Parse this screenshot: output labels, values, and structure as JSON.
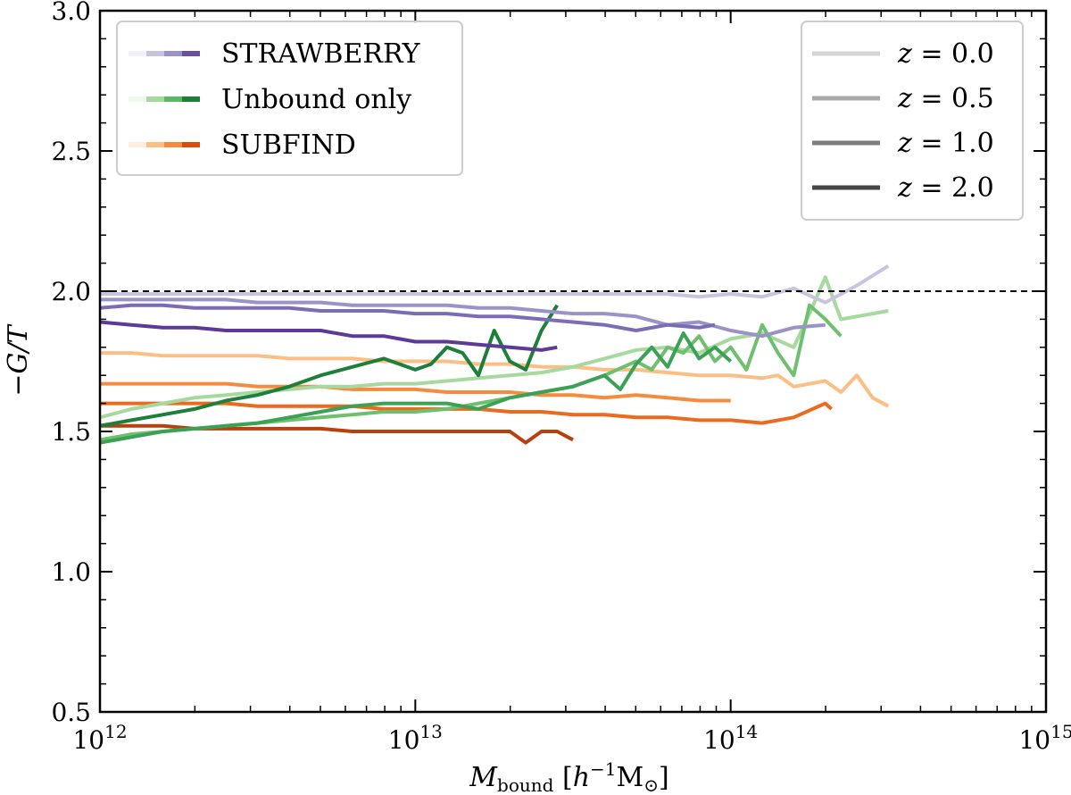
{
  "chart_data": {
    "type": "line",
    "xscale": "log",
    "xlim": [
      1000000000000.0,
      1000000000000000.0
    ],
    "ylim": [
      0.5,
      3.0
    ],
    "reference_line": 2.0,
    "xlabel": {
      "symbol": "M",
      "sub": "bound",
      "unit_open": " [",
      "h": "h",
      "exp": "−1",
      "msun": "M",
      "sun": "⊙",
      "unit_close": "]"
    },
    "ylabel": {
      "minus": "−",
      "text": "G/T"
    },
    "x_ticks": [
      {
        "value": 1000000000000.0,
        "base": "10",
        "exp": "12"
      },
      {
        "value": 10000000000000.0,
        "base": "10",
        "exp": "13"
      },
      {
        "value": 100000000000000.0,
        "base": "10",
        "exp": "14"
      },
      {
        "value": 1000000000000000.0,
        "base": "10",
        "exp": "15"
      }
    ],
    "y_ticks": [
      "0.5",
      "1.0",
      "1.5",
      "2.0",
      "2.5",
      "3.0"
    ],
    "method_legend": [
      {
        "label": "STRAWBERRY",
        "colors": [
          "#f2f0f8",
          "#c8c4e0",
          "#9b93c7",
          "#6a4fa3"
        ]
      },
      {
        "label": "Unbound only",
        "colors": [
          "#eef8eb",
          "#a5d99d",
          "#5fb666",
          "#1d7f3a"
        ]
      },
      {
        "label": "SUBFIND",
        "colors": [
          "#fdeede",
          "#fbbf86",
          "#f58b3f",
          "#d94a0f"
        ]
      }
    ],
    "redshift_legend": [
      {
        "label_var": "z",
        "label_val": " = 0.0",
        "color": "#d4d4d4"
      },
      {
        "label_var": "z",
        "label_val": " = 0.5",
        "color": "#a9a9a9"
      },
      {
        "label_var": "z",
        "label_val": " = 1.0",
        "color": "#7d7d7d"
      },
      {
        "label_var": "z",
        "label_val": " = 2.0",
        "color": "#454545"
      }
    ],
    "series": [
      {
        "name": "SUBFIND z=0.0",
        "color": "#fbbf86",
        "logM": [
          12.0,
          12.1,
          12.2,
          12.3,
          12.4,
          12.5,
          12.6,
          12.7,
          12.8,
          12.9,
          13.0,
          13.1,
          13.2,
          13.3,
          13.4,
          13.5,
          13.6,
          13.7,
          13.8,
          13.9,
          14.0,
          14.1,
          14.15,
          14.2,
          14.3,
          14.35,
          14.4,
          14.45,
          14.5
        ],
        "values": [
          1.78,
          1.78,
          1.77,
          1.77,
          1.77,
          1.77,
          1.76,
          1.76,
          1.76,
          1.75,
          1.75,
          1.75,
          1.74,
          1.74,
          1.73,
          1.73,
          1.72,
          1.72,
          1.71,
          1.7,
          1.7,
          1.69,
          1.7,
          1.66,
          1.68,
          1.64,
          1.7,
          1.62,
          1.59
        ]
      },
      {
        "name": "SUBFIND z=0.5",
        "color": "#f58b3f",
        "logM": [
          12.0,
          12.1,
          12.2,
          12.3,
          12.4,
          12.5,
          12.6,
          12.7,
          12.8,
          12.9,
          13.0,
          13.1,
          13.2,
          13.3,
          13.4,
          13.5,
          13.6,
          13.7,
          13.8,
          13.9,
          14.0
        ],
        "values": [
          1.67,
          1.67,
          1.67,
          1.67,
          1.67,
          1.66,
          1.66,
          1.66,
          1.65,
          1.65,
          1.65,
          1.64,
          1.64,
          1.64,
          1.63,
          1.63,
          1.62,
          1.63,
          1.62,
          1.61,
          1.61
        ]
      },
      {
        "name": "SUBFIND z=1.0",
        "color": "#ec6a1d",
        "logM": [
          12.0,
          12.1,
          12.2,
          12.3,
          12.4,
          12.5,
          12.6,
          12.7,
          12.8,
          12.9,
          13.0,
          13.1,
          13.2,
          13.3,
          13.4,
          13.5,
          13.6,
          13.7,
          13.8,
          13.9,
          14.0,
          14.1,
          14.2,
          14.3,
          14.32
        ],
        "values": [
          1.6,
          1.6,
          1.6,
          1.6,
          1.6,
          1.59,
          1.59,
          1.59,
          1.59,
          1.58,
          1.58,
          1.58,
          1.58,
          1.57,
          1.57,
          1.56,
          1.56,
          1.55,
          1.55,
          1.54,
          1.54,
          1.53,
          1.55,
          1.6,
          1.58
        ]
      },
      {
        "name": "SUBFIND z=2.0",
        "color": "#b7400c",
        "logM": [
          12.0,
          12.1,
          12.2,
          12.3,
          12.4,
          12.5,
          12.6,
          12.7,
          12.8,
          12.9,
          13.0,
          13.1,
          13.2,
          13.3,
          13.35,
          13.4,
          13.45,
          13.5
        ],
        "values": [
          1.52,
          1.52,
          1.52,
          1.51,
          1.51,
          1.51,
          1.51,
          1.51,
          1.5,
          1.5,
          1.5,
          1.5,
          1.5,
          1.5,
          1.46,
          1.5,
          1.5,
          1.47
        ]
      },
      {
        "name": "Unbound z=0.0",
        "color": "#a5d99d",
        "logM": [
          12.0,
          12.1,
          12.2,
          12.3,
          12.4,
          12.5,
          12.6,
          12.7,
          12.8,
          12.9,
          13.0,
          13.1,
          13.2,
          13.3,
          13.4,
          13.5,
          13.6,
          13.7,
          13.8,
          13.9,
          14.0,
          14.1,
          14.2,
          14.25,
          14.3,
          14.35,
          14.4,
          14.5
        ],
        "values": [
          1.55,
          1.58,
          1.6,
          1.62,
          1.63,
          1.64,
          1.65,
          1.66,
          1.66,
          1.67,
          1.67,
          1.68,
          1.69,
          1.7,
          1.71,
          1.73,
          1.76,
          1.79,
          1.8,
          1.78,
          1.83,
          1.85,
          1.8,
          1.92,
          2.05,
          1.9,
          1.91,
          1.93
        ]
      },
      {
        "name": "Unbound z=0.5",
        "color": "#6fc06e",
        "logM": [
          12.0,
          12.1,
          12.2,
          12.3,
          12.4,
          12.5,
          12.6,
          12.7,
          12.8,
          12.9,
          13.0,
          13.1,
          13.2,
          13.3,
          13.4,
          13.5,
          13.6,
          13.7,
          13.75,
          13.8,
          13.85,
          13.9,
          13.95,
          14.0,
          14.05,
          14.1,
          14.15,
          14.2,
          14.25,
          14.3,
          14.35
        ],
        "values": [
          1.47,
          1.49,
          1.5,
          1.51,
          1.52,
          1.53,
          1.54,
          1.55,
          1.56,
          1.57,
          1.57,
          1.58,
          1.6,
          1.62,
          1.64,
          1.66,
          1.7,
          1.75,
          1.72,
          1.8,
          1.78,
          1.84,
          1.75,
          1.8,
          1.72,
          1.88,
          1.78,
          1.7,
          1.95,
          1.9,
          1.84
        ]
      },
      {
        "name": "Unbound z=1.0",
        "color": "#3aa155",
        "logM": [
          12.0,
          12.1,
          12.2,
          12.3,
          12.4,
          12.5,
          12.6,
          12.7,
          12.8,
          12.9,
          13.0,
          13.1,
          13.2,
          13.3,
          13.4,
          13.5,
          13.6,
          13.65,
          13.7,
          13.75,
          13.8,
          13.85,
          13.9,
          13.95,
          14.0
        ],
        "values": [
          1.46,
          1.48,
          1.5,
          1.51,
          1.52,
          1.53,
          1.55,
          1.57,
          1.59,
          1.6,
          1.6,
          1.6,
          1.58,
          1.62,
          1.64,
          1.66,
          1.7,
          1.65,
          1.74,
          1.8,
          1.73,
          1.85,
          1.76,
          1.8,
          1.75
        ]
      },
      {
        "name": "Unbound z=2.0",
        "color": "#1d7f3a",
        "logM": [
          12.0,
          12.1,
          12.2,
          12.3,
          12.4,
          12.5,
          12.6,
          12.7,
          12.8,
          12.9,
          13.0,
          13.05,
          13.1,
          13.15,
          13.2,
          13.25,
          13.3,
          13.35,
          13.4,
          13.45
        ],
        "values": [
          1.52,
          1.54,
          1.56,
          1.58,
          1.61,
          1.63,
          1.66,
          1.7,
          1.73,
          1.76,
          1.72,
          1.74,
          1.8,
          1.78,
          1.7,
          1.86,
          1.75,
          1.72,
          1.86,
          1.95
        ]
      },
      {
        "name": "STRAWBERRY z=0.0",
        "color": "#c8c4e0",
        "logM": [
          12.0,
          12.1,
          12.2,
          12.3,
          12.4,
          12.5,
          12.6,
          12.7,
          12.8,
          12.9,
          13.0,
          13.1,
          13.2,
          13.3,
          13.4,
          13.5,
          13.6,
          13.7,
          13.8,
          13.9,
          14.0,
          14.1,
          14.2,
          14.3,
          14.4,
          14.5
        ],
        "values": [
          1.99,
          1.99,
          1.99,
          1.99,
          1.99,
          1.99,
          1.99,
          1.99,
          1.99,
          1.99,
          1.99,
          1.99,
          1.99,
          1.99,
          1.99,
          1.99,
          1.99,
          1.99,
          1.99,
          1.98,
          1.99,
          1.98,
          2.01,
          1.96,
          2.02,
          2.09
        ]
      },
      {
        "name": "STRAWBERRY z=0.5",
        "color": "#9b93c7",
        "logM": [
          12.0,
          12.1,
          12.2,
          12.3,
          12.4,
          12.5,
          12.6,
          12.7,
          12.8,
          12.9,
          13.0,
          13.1,
          13.2,
          13.3,
          13.4,
          13.5,
          13.6,
          13.7,
          13.8,
          13.9,
          14.0,
          14.1,
          14.2,
          14.3
        ],
        "values": [
          1.97,
          1.97,
          1.97,
          1.97,
          1.97,
          1.96,
          1.96,
          1.96,
          1.95,
          1.95,
          1.95,
          1.95,
          1.94,
          1.94,
          1.93,
          1.92,
          1.92,
          1.91,
          1.88,
          1.89,
          1.86,
          1.84,
          1.87,
          1.88
        ]
      },
      {
        "name": "STRAWBERRY z=1.0",
        "color": "#7d6bb5",
        "logM": [
          12.0,
          12.1,
          12.2,
          12.3,
          12.4,
          12.5,
          12.6,
          12.7,
          12.8,
          12.9,
          13.0,
          13.1,
          13.2,
          13.3,
          13.4,
          13.5,
          13.6,
          13.7,
          13.8,
          13.9,
          13.95
        ],
        "values": [
          1.94,
          1.95,
          1.95,
          1.94,
          1.94,
          1.94,
          1.94,
          1.93,
          1.93,
          1.93,
          1.92,
          1.92,
          1.91,
          1.91,
          1.9,
          1.89,
          1.88,
          1.86,
          1.88,
          1.87,
          1.88
        ]
      },
      {
        "name": "STRAWBERRY z=2.0",
        "color": "#5b3a98",
        "logM": [
          12.0,
          12.1,
          12.2,
          12.3,
          12.4,
          12.5,
          12.6,
          12.7,
          12.8,
          12.9,
          13.0,
          13.1,
          13.2,
          13.3,
          13.4,
          13.45
        ],
        "values": [
          1.89,
          1.88,
          1.87,
          1.87,
          1.86,
          1.86,
          1.86,
          1.86,
          1.84,
          1.84,
          1.82,
          1.82,
          1.81,
          1.8,
          1.79,
          1.8
        ]
      }
    ]
  }
}
